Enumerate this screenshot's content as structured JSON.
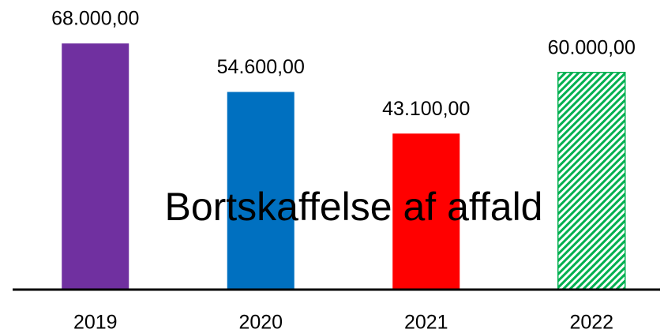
{
  "chart_data": {
    "type": "bar",
    "title": "Bortskaffelse af affald",
    "categories": [
      "2019",
      "2020",
      "2021",
      "2022"
    ],
    "values": [
      68000,
      54600,
      43100,
      60000
    ],
    "value_labels": [
      "68.000,00",
      "54.600,00",
      "43.100,00",
      "60.000,00"
    ],
    "colors": [
      "#7030a0",
      "#0070c0",
      "#ff0000",
      "#00b050"
    ],
    "hatched": [
      false,
      false,
      false,
      true
    ],
    "ylim": [
      0,
      80000
    ]
  }
}
